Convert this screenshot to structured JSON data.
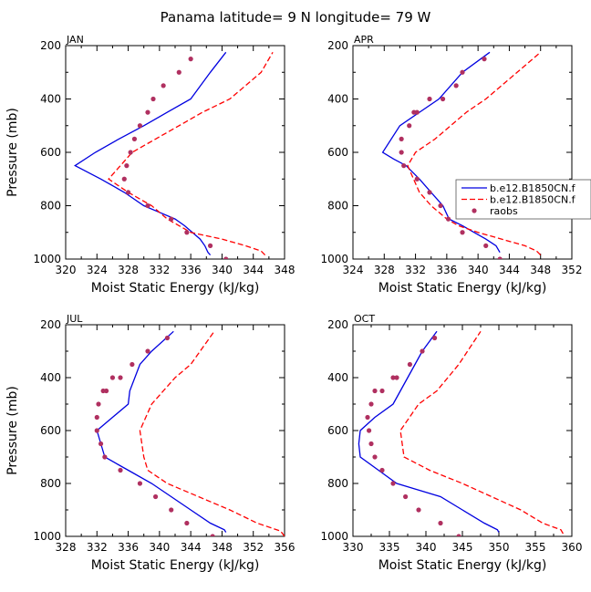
{
  "figure_title": "Panama  latitude= 9 N longitude= 79 W",
  "colors": {
    "model_a": "#0000e0",
    "model_b": "#ff0000",
    "obs": "#b03060"
  },
  "legend": [
    "b.e12.B1850CN.f",
    "b.e12.B1850CN.f",
    "raobs"
  ],
  "chart_data": [
    {
      "type": "line",
      "title": "JAN",
      "xlabel": "Moist Static Energy (kJ/kg)",
      "ylabel": "Pressure (mb)",
      "xlim": [
        320,
        348
      ],
      "ylim": [
        1000,
        200
      ],
      "xticks": [
        320,
        324,
        328,
        332,
        336,
        340,
        344,
        348
      ],
      "yticks": [
        200,
        400,
        600,
        800,
        1000
      ],
      "series": [
        {
          "name": "b.e12.B1850CN.f",
          "style": "solid",
          "x": [
            338.5,
            338.2,
            337.8,
            337.2,
            336.2,
            335.2,
            334,
            332,
            330,
            327.5,
            324.5,
            321.2,
            323.8,
            326.8,
            330,
            333,
            336,
            338.5,
            340.5
          ],
          "y": [
            985,
            975,
            950,
            925,
            900,
            875,
            850,
            825,
            800,
            750,
            700,
            650,
            600,
            550,
            500,
            450,
            400,
            300,
            225
          ]
        },
        {
          "name": "b.e12.B1850CN.f",
          "style": "dashed",
          "x": [
            345.5,
            345,
            343,
            340,
            336,
            334.5,
            333,
            331,
            328,
            325.5,
            328.5,
            331.5,
            334.5,
            337.5,
            341,
            345,
            346.5
          ],
          "y": [
            985,
            970,
            950,
            925,
            900,
            875,
            850,
            800,
            750,
            700,
            600,
            550,
            500,
            450,
            400,
            300,
            225
          ]
        },
        {
          "name": "raobs",
          "style": "dots",
          "x": [
            340.5,
            338.5,
            335.5,
            333.5,
            330.5,
            328,
            327.5,
            327.8,
            328.3,
            328.8,
            329.5,
            330.5,
            331.2,
            332.5,
            334.5,
            336
          ],
          "y": [
            1000,
            950,
            900,
            850,
            800,
            750,
            700,
            650,
            600,
            550,
            500,
            450,
            400,
            350,
            300,
            250
          ]
        }
      ]
    },
    {
      "type": "line",
      "title": "APR",
      "xlabel": "Moist Static Energy (kJ/kg)",
      "ylabel": "",
      "xlim": [
        324,
        352
      ],
      "ylim": [
        1000,
        200
      ],
      "xticks": [
        324,
        328,
        332,
        336,
        340,
        344,
        348,
        352
      ],
      "yticks": [
        200,
        400,
        600,
        800,
        1000
      ],
      "series": [
        {
          "name": "b.e12.B1850CN.f",
          "style": "solid",
          "x": [
            342.8,
            342.3,
            341,
            339.5,
            338,
            336.3,
            335.5,
            334,
            332.5,
            330.8,
            329.2,
            327.8,
            330,
            332.5,
            335,
            338,
            341.5
          ],
          "y": [
            975,
            950,
            925,
            900,
            875,
            850,
            800,
            750,
            700,
            650,
            625,
            600,
            500,
            450,
            400,
            300,
            225
          ]
        },
        {
          "name": "b.e12.B1850CN.f",
          "style": "dashed",
          "x": [
            348,
            347.5,
            346,
            343,
            340,
            337.5,
            336,
            334,
            332.5,
            331,
            332,
            334.5,
            336.5,
            338.5,
            341,
            345,
            348
          ],
          "y": [
            985,
            970,
            950,
            925,
            900,
            875,
            850,
            800,
            750,
            650,
            600,
            550,
            500,
            450,
            400,
            300,
            225
          ]
        },
        {
          "name": "raobs",
          "style": "dots",
          "x": [
            342.8,
            341,
            338,
            336.2,
            335.2,
            333.8,
            332.2,
            330.5,
            330.2,
            330.2,
            331.2,
            331.8,
            332.2,
            333.8,
            335.5,
            337.2,
            338,
            340.8
          ],
          "y": [
            1000,
            950,
            900,
            850,
            800,
            750,
            700,
            650,
            600,
            550,
            500,
            450,
            450,
            400,
            400,
            350,
            300,
            250
          ]
        }
      ]
    },
    {
      "type": "line",
      "title": "JUL",
      "xlabel": "Moist Static Energy (kJ/kg)",
      "ylabel": "Pressure (mb)",
      "xlim": [
        328,
        356
      ],
      "ylim": [
        1000,
        200
      ],
      "xticks": [
        328,
        332,
        336,
        340,
        344,
        348,
        352,
        356
      ],
      "yticks": [
        200,
        400,
        600,
        800,
        1000
      ],
      "series": [
        {
          "name": "b.e12.B1850CN.f",
          "style": "solid",
          "x": [
            348.5,
            348.3,
            346.5,
            344,
            341.5,
            339,
            336,
            333,
            332.5,
            332,
            334,
            336,
            336.2,
            337.5,
            339,
            341.8
          ],
          "y": [
            985,
            975,
            950,
            900,
            850,
            800,
            750,
            700,
            650,
            600,
            550,
            500,
            450,
            350,
            300,
            225
          ]
        },
        {
          "name": "b.e12.B1850CN.f",
          "style": "dashed",
          "x": [
            356,
            355.5,
            352.5,
            349,
            345,
            341,
            338.5,
            338,
            337.5,
            339,
            340.5,
            342,
            344,
            347
          ],
          "y": [
            1000,
            980,
            950,
            900,
            850,
            800,
            750,
            700,
            600,
            500,
            450,
            400,
            350,
            225
          ]
        },
        {
          "name": "raobs",
          "style": "dots",
          "x": [
            346.8,
            343.5,
            341.5,
            339.5,
            337.5,
            335,
            333,
            332.5,
            332,
            332,
            332.2,
            332.8,
            333.2,
            334,
            335,
            336.5,
            338.5,
            341
          ],
          "y": [
            1000,
            950,
            900,
            850,
            800,
            750,
            700,
            650,
            600,
            550,
            500,
            450,
            450,
            400,
            400,
            350,
            300,
            250
          ]
        }
      ]
    },
    {
      "type": "line",
      "title": "OCT",
      "xlabel": "Moist Static Energy (kJ/kg)",
      "ylabel": "",
      "xlim": [
        330,
        360
      ],
      "ylim": [
        1000,
        200
      ],
      "xticks": [
        330,
        335,
        340,
        345,
        350,
        355,
        360
      ],
      "yticks": [
        200,
        400,
        600,
        800,
        1000
      ],
      "series": [
        {
          "name": "b.e12.B1850CN.f",
          "style": "solid",
          "x": [
            350,
            349.8,
            348,
            345,
            342,
            339,
            336,
            333.5,
            331,
            330.8,
            331,
            333,
            335.5,
            336.5,
            337.5,
            339.5,
            341.5
          ],
          "y": [
            985,
            975,
            950,
            900,
            850,
            825,
            800,
            750,
            700,
            650,
            600,
            550,
            500,
            450,
            400,
            300,
            225
          ]
        },
        {
          "name": "b.e12.B1850CN.f",
          "style": "dashed",
          "x": [
            358.8,
            358.5,
            356,
            353,
            349,
            345,
            340.5,
            337,
            336.5,
            339,
            341.5,
            343,
            344.5,
            347.5
          ],
          "y": [
            990,
            975,
            950,
            900,
            850,
            800,
            750,
            700,
            600,
            500,
            450,
            400,
            350,
            225
          ]
        },
        {
          "name": "raobs",
          "style": "dots",
          "x": [
            344.5,
            342,
            339,
            337.2,
            335.5,
            334,
            333,
            332.5,
            332.2,
            332,
            332.5,
            333,
            334,
            335.5,
            336,
            337.8,
            339.5,
            341.2
          ],
          "y": [
            1000,
            950,
            900,
            850,
            800,
            750,
            700,
            650,
            600,
            550,
            500,
            450,
            450,
            400,
            400,
            350,
            300,
            250
          ]
        }
      ]
    }
  ]
}
